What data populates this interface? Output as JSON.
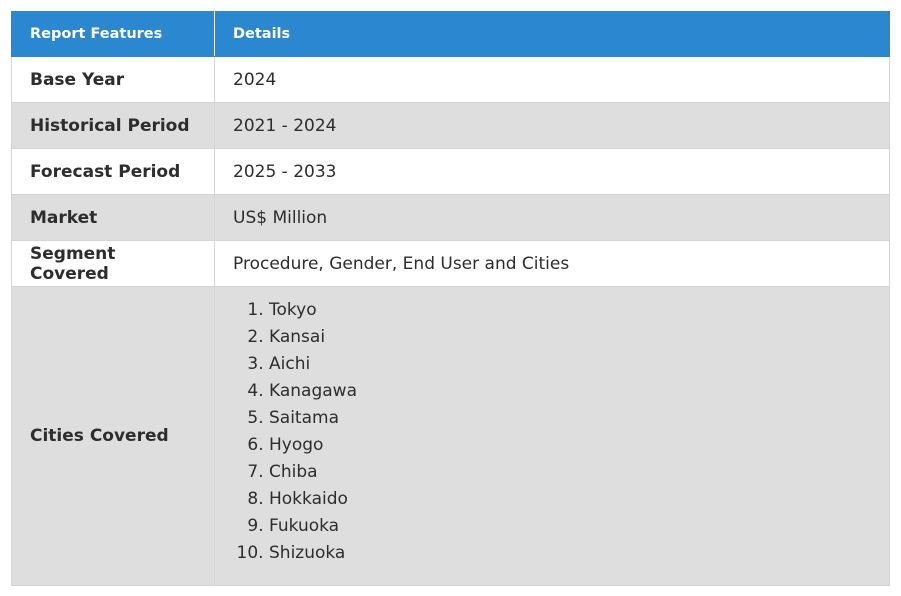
{
  "table": {
    "header": {
      "col1": "Report Features",
      "col2": "Details"
    },
    "rows": [
      {
        "feature": "Base Year",
        "detail": "2024"
      },
      {
        "feature": "Historical Period",
        "detail": "2021 - 2024"
      },
      {
        "feature": "Forecast Period",
        "detail": "2025 - 2033"
      },
      {
        "feature": "Market",
        "detail": "US$ Million"
      },
      {
        "feature": "Segment Covered",
        "detail": "Procedure, Gender, End User and Cities"
      }
    ],
    "cities": {
      "feature": "Cities Covered",
      "items": [
        "Tokyo",
        "Kansai",
        "Aichi",
        "Kanagawa",
        "Saitama",
        "Hyogo",
        "Chiba",
        "Hokkaido",
        "Fukuoka",
        "Shizuoka"
      ]
    }
  },
  "colors": {
    "header_bg": "#2a87d0",
    "header_text": "#ffffff",
    "row_alt_bg": "#dedede",
    "row_bg": "#ffffff"
  }
}
